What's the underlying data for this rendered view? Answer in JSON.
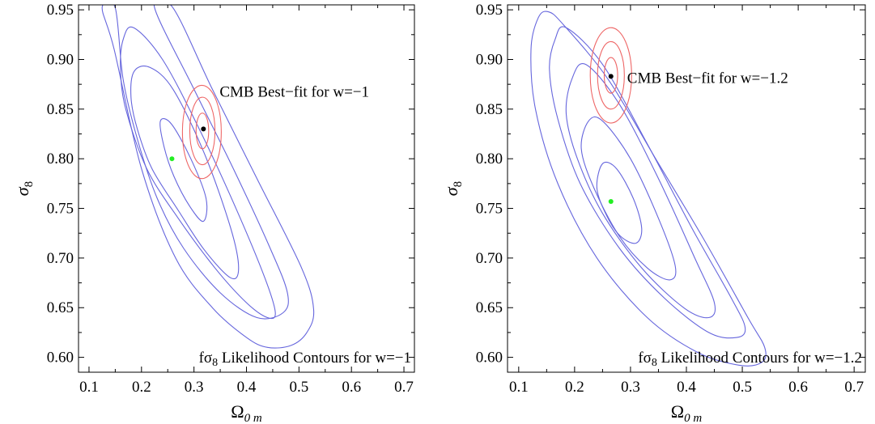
{
  "chart_data": [
    {
      "type": "contour",
      "xlabel": "Ω",
      "xlabel_sub": "0 m",
      "ylabel": "σ",
      "ylabel_sub": "8",
      "xlim": [
        0.08,
        0.72
      ],
      "ylim": [
        0.585,
        0.955
      ],
      "xticks": [
        "0.1",
        "0.2",
        "0.3",
        "0.4",
        "0.5",
        "0.6",
        "0.7"
      ],
      "yticks": [
        "0.60",
        "0.65",
        "0.70",
        "0.75",
        "0.80",
        "0.85",
        "0.90",
        "0.95"
      ],
      "annotation_top": "CMB Best−fit for w=−1",
      "annotation_bottom_prefix": "fσ",
      "annotation_bottom_sub": "8",
      "annotation_bottom_suffix": " Likelihood Contours for w=−1",
      "cmb_best_fit": {
        "x": 0.318,
        "y": 0.83,
        "color": "#000000"
      },
      "fs8_best_fit": {
        "x": 0.258,
        "y": 0.8,
        "color": "#22ee22"
      },
      "fs8_contour_color": "#6666dd",
      "cmb_contour_color": "#ee6666",
      "fs8_contours": [
        [
          [
            0.236,
            0.838
          ],
          [
            0.257,
            0.835
          ],
          [
            0.294,
            0.8
          ],
          [
            0.323,
            0.76
          ],
          [
            0.318,
            0.737
          ],
          [
            0.292,
            0.752
          ],
          [
            0.262,
            0.782
          ],
          [
            0.243,
            0.812
          ]
        ],
        [
          [
            0.186,
            0.888
          ],
          [
            0.216,
            0.892
          ],
          [
            0.26,
            0.87
          ],
          [
            0.32,
            0.805
          ],
          [
            0.37,
            0.73
          ],
          [
            0.385,
            0.69
          ],
          [
            0.37,
            0.68
          ],
          [
            0.32,
            0.708
          ],
          [
            0.27,
            0.748
          ],
          [
            0.22,
            0.79
          ],
          [
            0.192,
            0.83
          ],
          [
            0.18,
            0.862
          ]
        ],
        [
          [
            0.165,
            0.92
          ],
          [
            0.185,
            0.932
          ],
          [
            0.24,
            0.9
          ],
          [
            0.31,
            0.83
          ],
          [
            0.38,
            0.75
          ],
          [
            0.435,
            0.68
          ],
          [
            0.455,
            0.645
          ],
          [
            0.44,
            0.64
          ],
          [
            0.4,
            0.655
          ],
          [
            0.34,
            0.69
          ],
          [
            0.27,
            0.74
          ],
          [
            0.21,
            0.79
          ],
          [
            0.17,
            0.85
          ],
          [
            0.16,
            0.89
          ]
        ],
        [
          [
            0.125,
            0.952
          ],
          [
            0.148,
            0.91
          ],
          [
            0.2,
            0.79
          ],
          [
            0.265,
            0.7
          ],
          [
            0.335,
            0.65
          ],
          [
            0.4,
            0.62
          ],
          [
            0.44,
            0.61
          ],
          [
            0.485,
            0.612
          ],
          [
            0.515,
            0.625
          ],
          [
            0.528,
            0.648
          ],
          [
            0.505,
            0.69
          ],
          [
            0.42,
            0.78
          ],
          [
            0.335,
            0.87
          ],
          [
            0.26,
            0.952
          ],
          [
            0.225,
            0.952
          ],
          [
            0.3,
            0.87
          ],
          [
            0.375,
            0.79
          ],
          [
            0.445,
            0.71
          ],
          [
            0.478,
            0.665
          ],
          [
            0.47,
            0.645
          ],
          [
            0.42,
            0.64
          ],
          [
            0.35,
            0.665
          ],
          [
            0.28,
            0.71
          ],
          [
            0.23,
            0.76
          ],
          [
            0.192,
            0.82
          ],
          [
            0.165,
            0.88
          ],
          [
            0.15,
            0.952
          ]
        ]
      ],
      "cmb_contours": [
        {
          "cx": 0.316,
          "cy": 0.828,
          "rx": 0.012,
          "ry": 0.018
        },
        {
          "cx": 0.316,
          "cy": 0.828,
          "rx": 0.024,
          "ry": 0.034
        },
        {
          "cx": 0.315,
          "cy": 0.827,
          "rx": 0.037,
          "ry": 0.047
        }
      ]
    },
    {
      "type": "contour",
      "xlabel": "Ω",
      "xlabel_sub": "0 m",
      "ylabel": "σ",
      "ylabel_sub": "8",
      "xlim": [
        0.08,
        0.72
      ],
      "ylim": [
        0.585,
        0.955
      ],
      "xticks": [
        "0.1",
        "0.2",
        "0.3",
        "0.4",
        "0.5",
        "0.6",
        "0.7"
      ],
      "yticks": [
        "0.60",
        "0.65",
        "0.70",
        "0.75",
        "0.80",
        "0.85",
        "0.90",
        "0.95"
      ],
      "annotation_top": "CMB Best−fit for w=−1.2",
      "annotation_bottom_prefix": "fσ",
      "annotation_bottom_sub": "8",
      "annotation_bottom_suffix": " Likelihood Contours for w=−1.2",
      "cmb_best_fit": {
        "x": 0.265,
        "y": 0.883,
        "color": "#000000"
      },
      "fs8_best_fit": {
        "x": 0.265,
        "y": 0.757,
        "color": "#22ee22"
      },
      "fs8_contour_color": "#6666dd",
      "cmb_contour_color": "#ee6666",
      "fs8_contours": [
        [
          [
            0.25,
            0.795
          ],
          [
            0.275,
            0.79
          ],
          [
            0.305,
            0.76
          ],
          [
            0.32,
            0.73
          ],
          [
            0.31,
            0.715
          ],
          [
            0.282,
            0.722
          ],
          [
            0.258,
            0.742
          ],
          [
            0.24,
            0.77
          ]
        ],
        [
          [
            0.225,
            0.838
          ],
          [
            0.25,
            0.838
          ],
          [
            0.3,
            0.8
          ],
          [
            0.35,
            0.74
          ],
          [
            0.38,
            0.692
          ],
          [
            0.37,
            0.678
          ],
          [
            0.33,
            0.69
          ],
          [
            0.28,
            0.722
          ],
          [
            0.235,
            0.77
          ],
          [
            0.212,
            0.81
          ]
        ],
        [
          [
            0.195,
            0.88
          ],
          [
            0.22,
            0.895
          ],
          [
            0.28,
            0.855
          ],
          [
            0.35,
            0.78
          ],
          [
            0.415,
            0.7
          ],
          [
            0.45,
            0.655
          ],
          [
            0.44,
            0.64
          ],
          [
            0.395,
            0.65
          ],
          [
            0.32,
            0.69
          ],
          [
            0.25,
            0.745
          ],
          [
            0.205,
            0.8
          ],
          [
            0.185,
            0.845
          ]
        ],
        [
          [
            0.165,
            0.92
          ],
          [
            0.185,
            0.932
          ],
          [
            0.25,
            0.895
          ],
          [
            0.33,
            0.815
          ],
          [
            0.41,
            0.73
          ],
          [
            0.48,
            0.66
          ],
          [
            0.505,
            0.63
          ],
          [
            0.49,
            0.62
          ],
          [
            0.44,
            0.625
          ],
          [
            0.36,
            0.66
          ],
          [
            0.28,
            0.71
          ],
          [
            0.21,
            0.775
          ],
          [
            0.17,
            0.84
          ],
          [
            0.155,
            0.89
          ]
        ],
        [
          [
            0.153,
            0.948
          ],
          [
            0.18,
            0.935
          ],
          [
            0.26,
            0.88
          ],
          [
            0.345,
            0.8
          ],
          [
            0.43,
            0.72
          ],
          [
            0.51,
            0.64
          ],
          [
            0.54,
            0.61
          ],
          [
            0.535,
            0.595
          ],
          [
            0.495,
            0.592
          ],
          [
            0.42,
            0.605
          ],
          [
            0.33,
            0.64
          ],
          [
            0.24,
            0.7
          ],
          [
            0.17,
            0.775
          ],
          [
            0.13,
            0.85
          ],
          [
            0.122,
            0.91
          ],
          [
            0.135,
            0.942
          ]
        ]
      ],
      "cmb_contours": [
        {
          "cx": 0.265,
          "cy": 0.884,
          "rx": 0.012,
          "ry": 0.018
        },
        {
          "cx": 0.265,
          "cy": 0.884,
          "rx": 0.024,
          "ry": 0.034
        },
        {
          "cx": 0.265,
          "cy": 0.884,
          "rx": 0.037,
          "ry": 0.048
        }
      ]
    }
  ]
}
